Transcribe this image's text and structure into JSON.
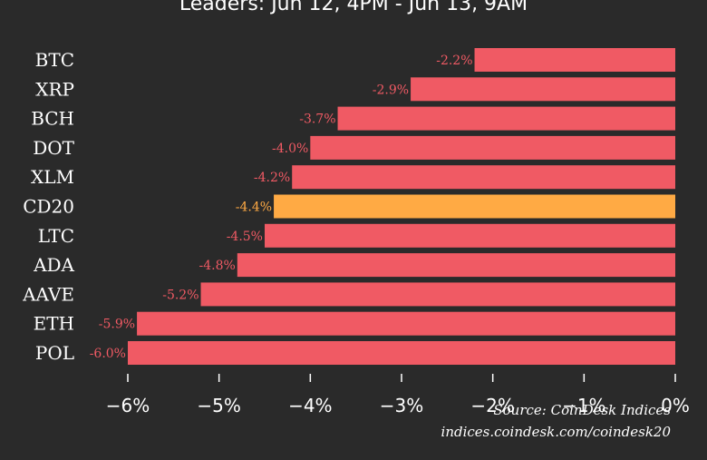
{
  "title": "Leaders: Jun 12, 4PM - Jun 13, 9AM",
  "source_line": "Source: CoinDesk Indices",
  "source_url": "indices.coindesk.com/coindesk20",
  "colors": {
    "background": "#2a2a2a",
    "bar": "#f05a64",
    "highlight": "#ffaa44",
    "label_red": "#f05a64",
    "label_highlight": "#ffaa44"
  },
  "chart_data": {
    "type": "bar",
    "orientation": "horizontal",
    "title": "Leaders: Jun 12, 4PM - Jun 13, 9AM",
    "categories": [
      "BTC",
      "XRP",
      "BCH",
      "DOT",
      "XLM",
      "CD20",
      "LTC",
      "ADA",
      "AAVE",
      "ETH",
      "POL"
    ],
    "values": [
      -2.2,
      -2.9,
      -3.7,
      -4.0,
      -4.2,
      -4.4,
      -4.5,
      -4.8,
      -5.2,
      -5.9,
      -6.0
    ],
    "value_labels": [
      "-2.2%",
      "-2.9%",
      "-3.7%",
      "-4.0%",
      "-4.2%",
      "-4.4%",
      "-4.5%",
      "-4.8%",
      "-5.2%",
      "-5.9%",
      "-6.0%"
    ],
    "highlight_category": "CD20",
    "xlim": [
      -6.0,
      0
    ],
    "xticks": [
      -6,
      -5,
      -4,
      -3,
      -2,
      -1,
      0
    ],
    "xtick_labels": [
      "−6%",
      "−5%",
      "−4%",
      "−3%",
      "−2%",
      "−1%",
      "0%"
    ],
    "grid": false,
    "legend": false
  }
}
